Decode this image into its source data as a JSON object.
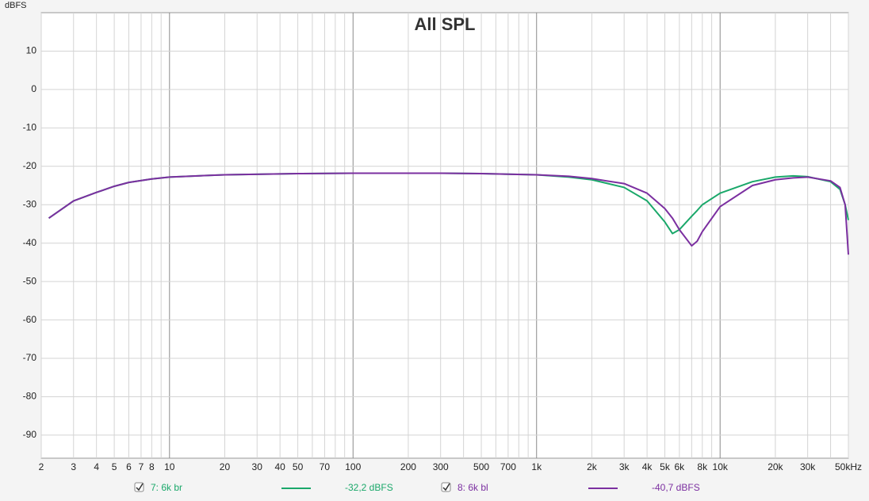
{
  "chart_data": {
    "type": "line",
    "title": "All SPL",
    "y_label": "dBFS",
    "x_scale": "log",
    "grid": true,
    "xlim": [
      2,
      50000
    ],
    "ylim": [
      -96,
      20
    ],
    "xticks": [
      2,
      3,
      4,
      5,
      6,
      7,
      8,
      10,
      20,
      30,
      40,
      50,
      70,
      100,
      200,
      300,
      500,
      700,
      {
        "value": 1000,
        "label": "1k"
      },
      {
        "value": 2000,
        "label": "2k"
      },
      {
        "value": 3000,
        "label": "3k"
      },
      {
        "value": 4000,
        "label": "4k"
      },
      {
        "value": 5000,
        "label": "5k"
      },
      {
        "value": 6000,
        "label": "6k"
      },
      {
        "value": 8000,
        "label": "8k"
      },
      {
        "value": 10000,
        "label": "10k"
      },
      {
        "value": 20000,
        "label": "20k"
      },
      {
        "value": 30000,
        "label": "30k"
      },
      {
        "value": 50000,
        "label": "50kHz"
      }
    ],
    "xminor_ticks": [
      9,
      60,
      80,
      90,
      400,
      600,
      800,
      900,
      7000,
      9000,
      40000
    ],
    "yticks": [
      10,
      0,
      -10,
      -20,
      -30,
      -40,
      -50,
      -60,
      -70,
      -80,
      -90
    ],
    "x": [
      2.2,
      3,
      4,
      5,
      6,
      8,
      10,
      20,
      50,
      100,
      300,
      500,
      1000,
      1500,
      2000,
      3000,
      4000,
      5000,
      5500,
      6000,
      7000,
      7500,
      8000,
      10000,
      15000,
      20000,
      25000,
      30000,
      40000,
      45000,
      48000,
      50000
    ],
    "series": [
      {
        "name": "7: 6k br",
        "readout": "-32,2 dBFS",
        "color": "#1aa86a",
        "values": [
          -33.5,
          -29,
          -26.8,
          -25.2,
          -24.2,
          -23.3,
          -22.8,
          -22.2,
          -21.9,
          -21.8,
          -21.8,
          -21.9,
          -22.2,
          -22.8,
          -23.5,
          -25.5,
          -29,
          -34.5,
          -37.5,
          -36.5,
          -33,
          -31.5,
          -30,
          -27,
          -24,
          -22.8,
          -22.5,
          -22.7,
          -24,
          -26,
          -30,
          -34
        ]
      },
      {
        "name": "8: 6k bl",
        "readout": "-40,7 dBFS",
        "color": "#7b2fa0",
        "values": [
          -33.5,
          -29,
          -26.8,
          -25.2,
          -24.2,
          -23.3,
          -22.8,
          -22.2,
          -21.9,
          -21.8,
          -21.8,
          -21.9,
          -22.2,
          -22.6,
          -23.2,
          -24.5,
          -27,
          -31,
          -33.5,
          -36.5,
          -40.7,
          -39.5,
          -37,
          -30.5,
          -25,
          -23.5,
          -23,
          -22.8,
          -23.8,
          -25.5,
          -30,
          -43
        ]
      }
    ]
  }
}
